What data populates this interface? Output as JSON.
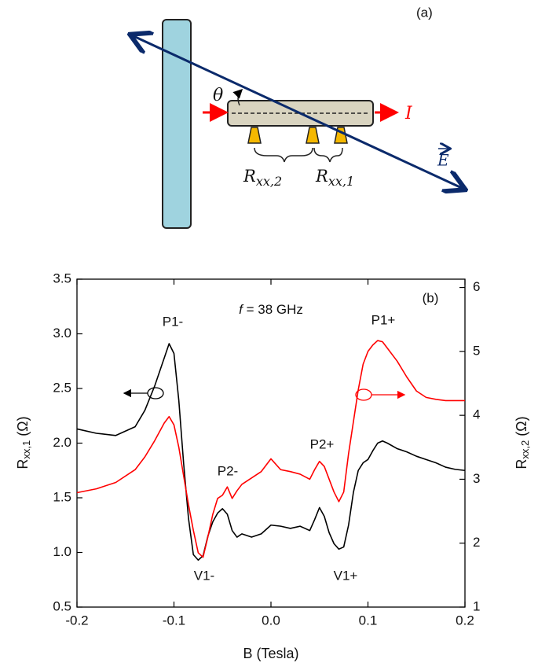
{
  "diagram": {
    "panel_label": "(a)",
    "angle": "θ",
    "current": "I",
    "field": "E",
    "r2": {
      "symbol": "R",
      "subscript": "xx,2"
    },
    "r1": {
      "symbol": "R",
      "subscript": "xx,1"
    }
  },
  "chart_data": {
    "type": "line",
    "panel_label": "(b)",
    "condition": {
      "variable": "f",
      "text": " = 38 GHz"
    },
    "annotations": [
      "P1-",
      "P2-",
      "V1-",
      "P2+",
      "V1+",
      "P1+"
    ],
    "xlabel": "B (Tesla)",
    "ylabel": {
      "symbol": "R",
      "subscript": "xx,1",
      "unit": " (Ω)"
    },
    "y2label": {
      "symbol": "R",
      "subscript": "xx,2",
      "unit": " (Ω)"
    },
    "xlim": [
      -0.2,
      0.2
    ],
    "xticks": [
      -0.2,
      -0.1,
      {
        "value": 0,
        "label": "0.0"
      },
      0.1,
      0.2
    ],
    "ylim": [
      0.5,
      3.5
    ],
    "yticks": [
      0.5,
      {
        "value": 1,
        "label": "1.0"
      },
      1.5,
      {
        "value": 2,
        "label": "2.0"
      },
      2.5,
      {
        "value": 3,
        "label": "3.0"
      },
      3.5
    ],
    "y2lim": [
      1,
      6.13
    ],
    "y2ticks": [
      1,
      2,
      3,
      4,
      5,
      6
    ],
    "x": [
      -0.2,
      -0.18,
      -0.16,
      -0.14,
      -0.13,
      -0.12,
      -0.11,
      -0.105,
      -0.1,
      -0.095,
      -0.09,
      -0.085,
      -0.08,
      -0.075,
      -0.07,
      -0.065,
      -0.06,
      -0.055,
      -0.05,
      -0.045,
      -0.04,
      -0.035,
      -0.03,
      -0.02,
      -0.01,
      0,
      0.01,
      0.02,
      0.03,
      0.04,
      0.045,
      0.05,
      0.055,
      0.06,
      0.065,
      0.07,
      0.075,
      0.08,
      0.085,
      0.09,
      0.095,
      0.1,
      0.105,
      0.11,
      0.115,
      0.12,
      0.13,
      0.14,
      0.15,
      0.16,
      0.17,
      0.18,
      0.19,
      0.2
    ],
    "series": [
      {
        "color": "#000000",
        "values": [
          2.13,
          2.09,
          2.07,
          2.15,
          2.3,
          2.52,
          2.78,
          2.91,
          2.82,
          2.39,
          1.81,
          1.31,
          0.98,
          0.93,
          0.97,
          1.15,
          1.28,
          1.36,
          1.4,
          1.35,
          1.2,
          1.14,
          1.17,
          1.14,
          1.17,
          1.25,
          1.24,
          1.22,
          1.24,
          1.2,
          1.3,
          1.41,
          1.33,
          1.18,
          1.08,
          1.03,
          1.05,
          1.25,
          1.55,
          1.75,
          1.82,
          1.85,
          1.93,
          2.0,
          2.02,
          2.0,
          1.95,
          1.92,
          1.88,
          1.85,
          1.82,
          1.78,
          1.76,
          1.75
        ]
      },
      {
        "color": "#ff0000",
        "axis": "y2",
        "values": [
          2.79,
          2.85,
          2.95,
          3.15,
          3.35,
          3.6,
          3.88,
          3.98,
          3.85,
          3.5,
          3.05,
          2.6,
          2.2,
          1.85,
          1.78,
          2.1,
          2.45,
          2.7,
          2.75,
          2.88,
          2.7,
          2.82,
          2.92,
          3.02,
          3.12,
          3.32,
          3.15,
          3.12,
          3.08,
          3.0,
          3.15,
          3.28,
          3.2,
          3.0,
          2.8,
          2.65,
          2.8,
          3.4,
          3.9,
          4.4,
          4.8,
          5.0,
          5.1,
          5.17,
          5.15,
          5.05,
          4.85,
          4.6,
          4.38,
          4.28,
          4.25,
          4.23,
          4.23,
          4.23
        ]
      }
    ]
  }
}
